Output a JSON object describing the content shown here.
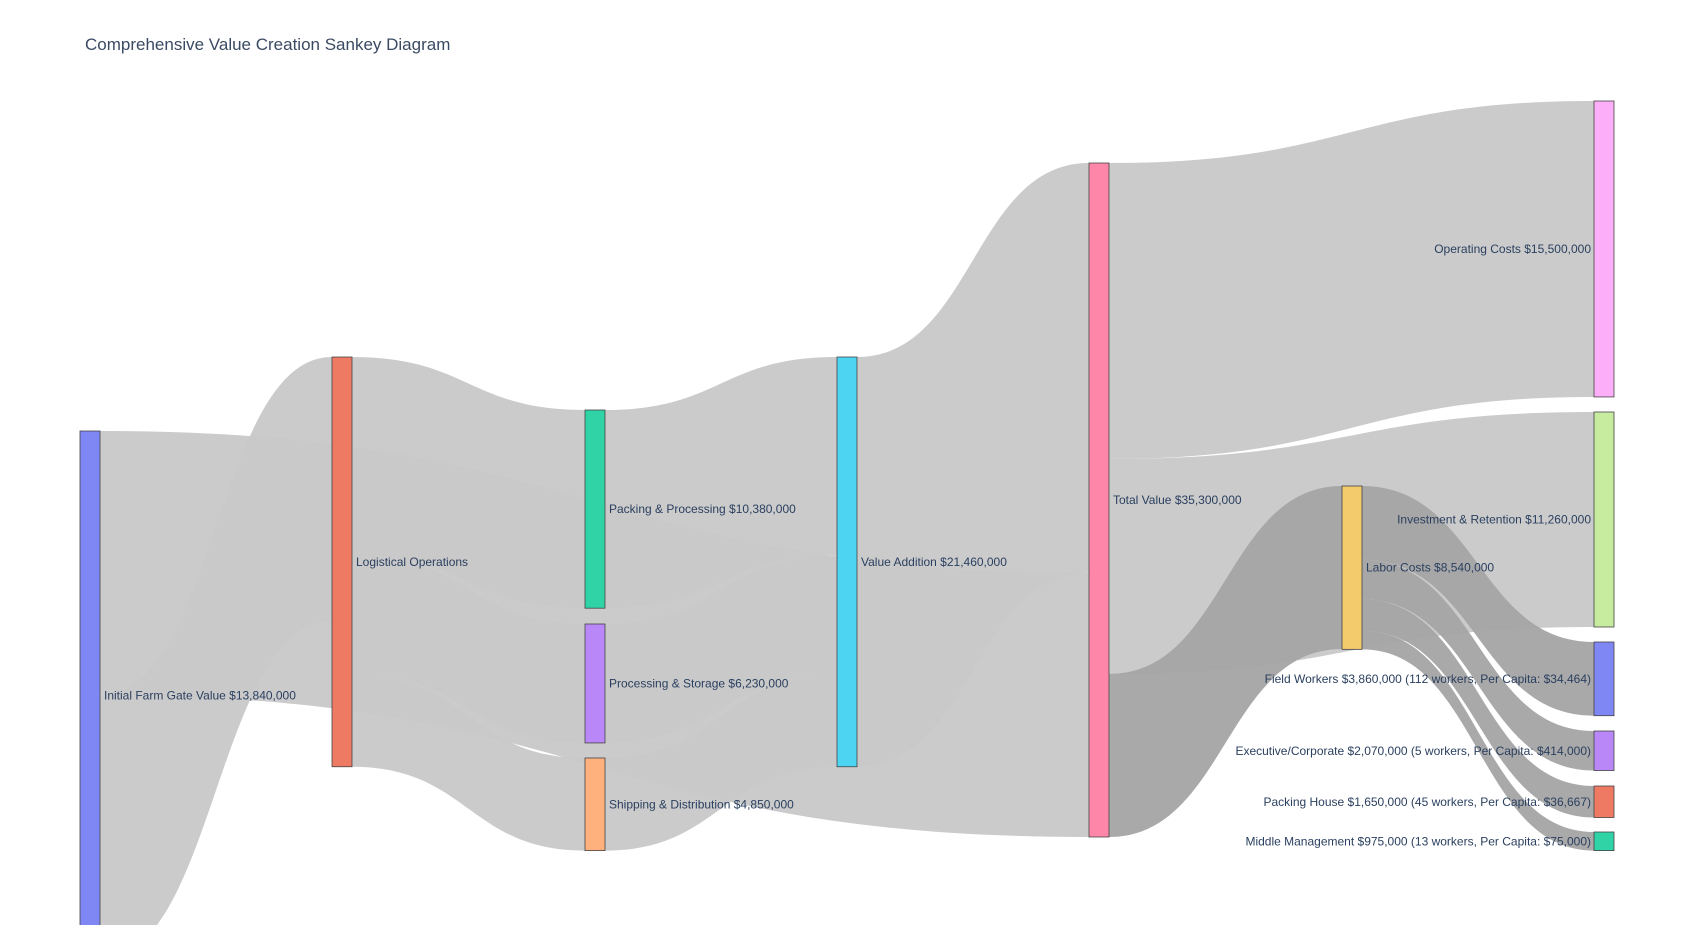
{
  "chart_data": {
    "type": "sankey",
    "title": "Comprehensive Value Creation Sankey Diagram",
    "nodes": [
      {
        "id": "farm",
        "label": "Initial Farm Gate Value $13,840,000",
        "color": "#7f87f5"
      },
      {
        "id": "logistics",
        "label": "Logistical Operations",
        "color": "#ef7a64"
      },
      {
        "id": "packing",
        "label": "Packing & Processing $10,380,000",
        "color": "#2fd3a6"
      },
      {
        "id": "storage",
        "label": "Processing & Storage $6,230,000",
        "color": "#b987f7"
      },
      {
        "id": "shipping",
        "label": "Shipping & Distribution $4,850,000",
        "color": "#feb17d"
      },
      {
        "id": "value_add",
        "label": "Value Addition $21,460,000",
        "color": "#4dd4f2"
      },
      {
        "id": "total",
        "label": "Total Value $35,300,000",
        "color": "#fe87a9"
      },
      {
        "id": "operating",
        "label": "Operating Costs $15,500,000",
        "color": "#fdaef8"
      },
      {
        "id": "investment",
        "label": "Investment & Retention $11,260,000",
        "color": "#c7eca0"
      },
      {
        "id": "labor",
        "label": "Labor Costs $8,540,000",
        "color": "#f3ca6c"
      },
      {
        "id": "field",
        "label": "Field Workers $3,860,000 (112 workers, Per Capita: $34,464)",
        "color": "#7f87f5"
      },
      {
        "id": "exec",
        "label": "Executive/Corporate $2,070,000 (5 workers, Per Capita: $414,000)",
        "color": "#b987f7"
      },
      {
        "id": "packhouse",
        "label": "Packing House $1,650,000 (45 workers, Per Capita: $36,667)",
        "color": "#ef7a64"
      },
      {
        "id": "middle",
        "label": "Middle Management $975,000 (13 workers, Per Capita: $75,000)",
        "color": "#2fd3a6"
      }
    ],
    "links": [
      {
        "source": "farm",
        "target": "logistics",
        "value": 13840000
      },
      {
        "source": "logistics",
        "target": "packing",
        "value": 10380000
      },
      {
        "source": "logistics",
        "target": "storage",
        "value": 6230000
      },
      {
        "source": "logistics",
        "target": "shipping",
        "value": 4850000
      },
      {
        "source": "packing",
        "target": "value_add",
        "value": 10380000
      },
      {
        "source": "storage",
        "target": "value_add",
        "value": 6230000
      },
      {
        "source": "shipping",
        "target": "value_add",
        "value": 4850000
      },
      {
        "source": "farm",
        "target": "total",
        "value": 13840000
      },
      {
        "source": "value_add",
        "target": "total",
        "value": 21460000
      },
      {
        "source": "total",
        "target": "operating",
        "value": 15500000
      },
      {
        "source": "total",
        "target": "investment",
        "value": 11260000
      },
      {
        "source": "total",
        "target": "labor",
        "value": 8540000
      },
      {
        "source": "labor",
        "target": "field",
        "value": 3860000
      },
      {
        "source": "labor",
        "target": "exec",
        "value": 2070000
      },
      {
        "source": "labor",
        "target": "packhouse",
        "value": 1650000
      },
      {
        "source": "labor",
        "target": "middle",
        "value": 975000
      }
    ]
  }
}
